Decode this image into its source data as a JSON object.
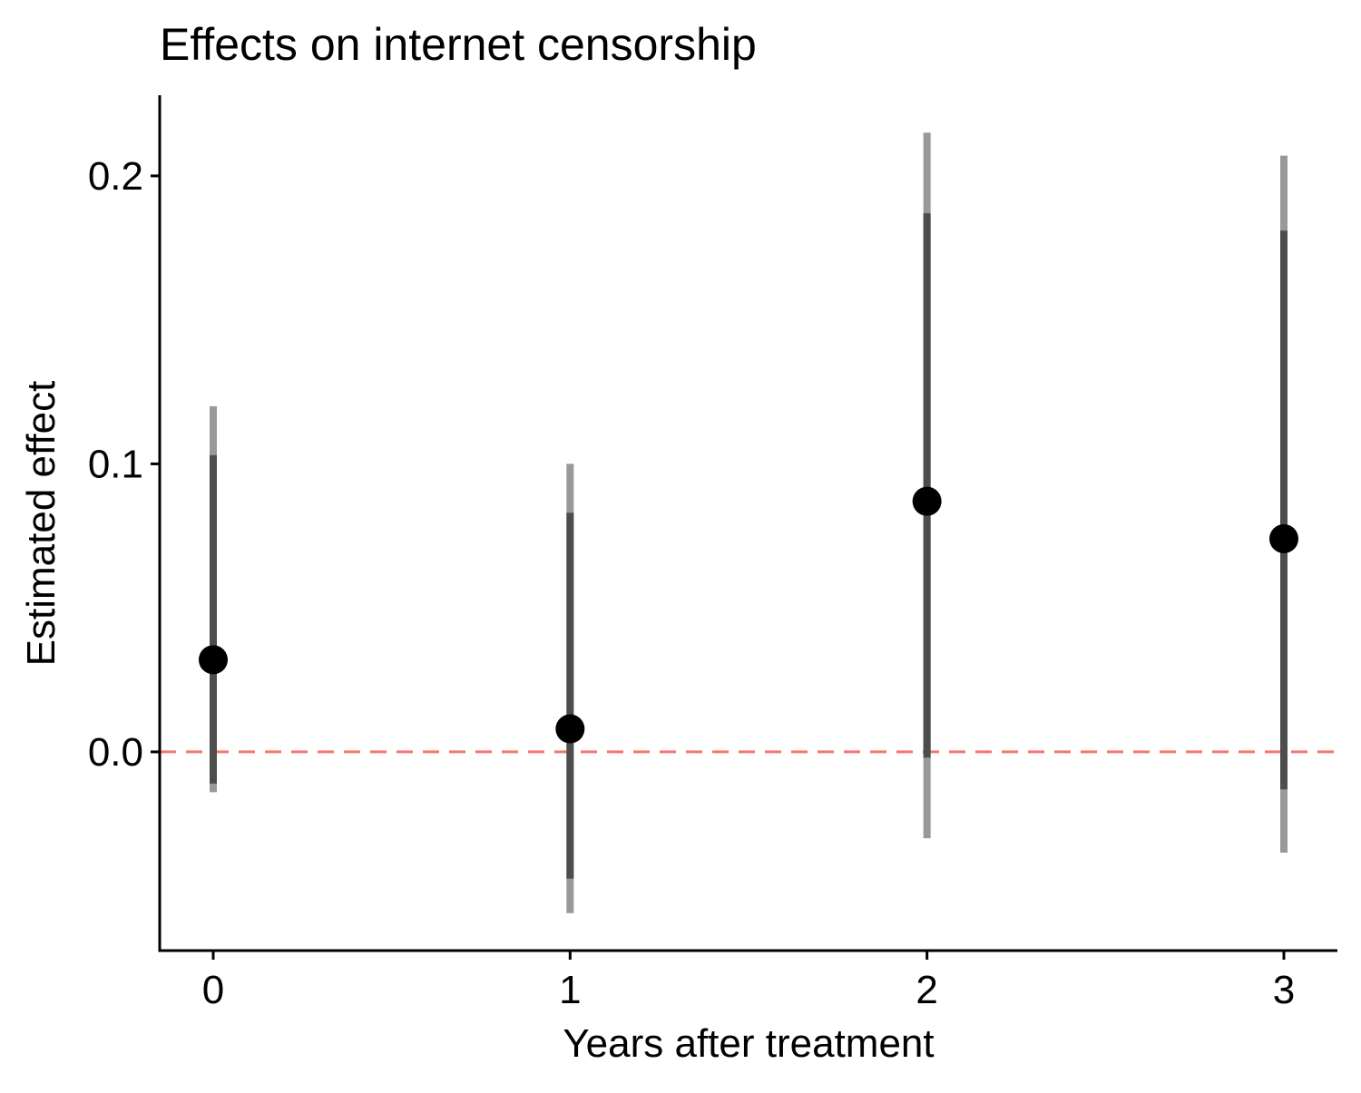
{
  "chart_data": {
    "type": "scatter",
    "title": "Effects on internet censorship",
    "xlabel": "Years after treatment",
    "ylabel": "Estimated effect",
    "x_ticks": [
      "0",
      "1",
      "2",
      "3"
    ],
    "y_ticks": [
      "0.0",
      "0.1",
      "0.2"
    ],
    "xlim": [
      -0.15,
      3.15
    ],
    "ylim": [
      -0.069,
      0.228
    ],
    "grid": false,
    "legend": "none",
    "reference_line": {
      "y": 0.0,
      "style": "dashed",
      "color": "#F8766D"
    },
    "points": [
      {
        "x": 0,
        "estimate": 0.032,
        "ci_inner": [
          -0.011,
          0.103
        ],
        "ci_outer": [
          -0.014,
          0.12
        ]
      },
      {
        "x": 1,
        "estimate": 0.008,
        "ci_inner": [
          -0.044,
          0.083
        ],
        "ci_outer": [
          -0.056,
          0.1
        ]
      },
      {
        "x": 2,
        "estimate": 0.087,
        "ci_inner": [
          -0.002,
          0.187
        ],
        "ci_outer": [
          -0.03,
          0.215
        ]
      },
      {
        "x": 3,
        "estimate": 0.074,
        "ci_inner": [
          -0.013,
          0.181
        ],
        "ci_outer": [
          -0.035,
          0.207
        ]
      }
    ],
    "colors": {
      "point": "#000000",
      "ci_inner": "#4d4d4d",
      "ci_outer": "#999999",
      "axis": "#000000"
    }
  }
}
